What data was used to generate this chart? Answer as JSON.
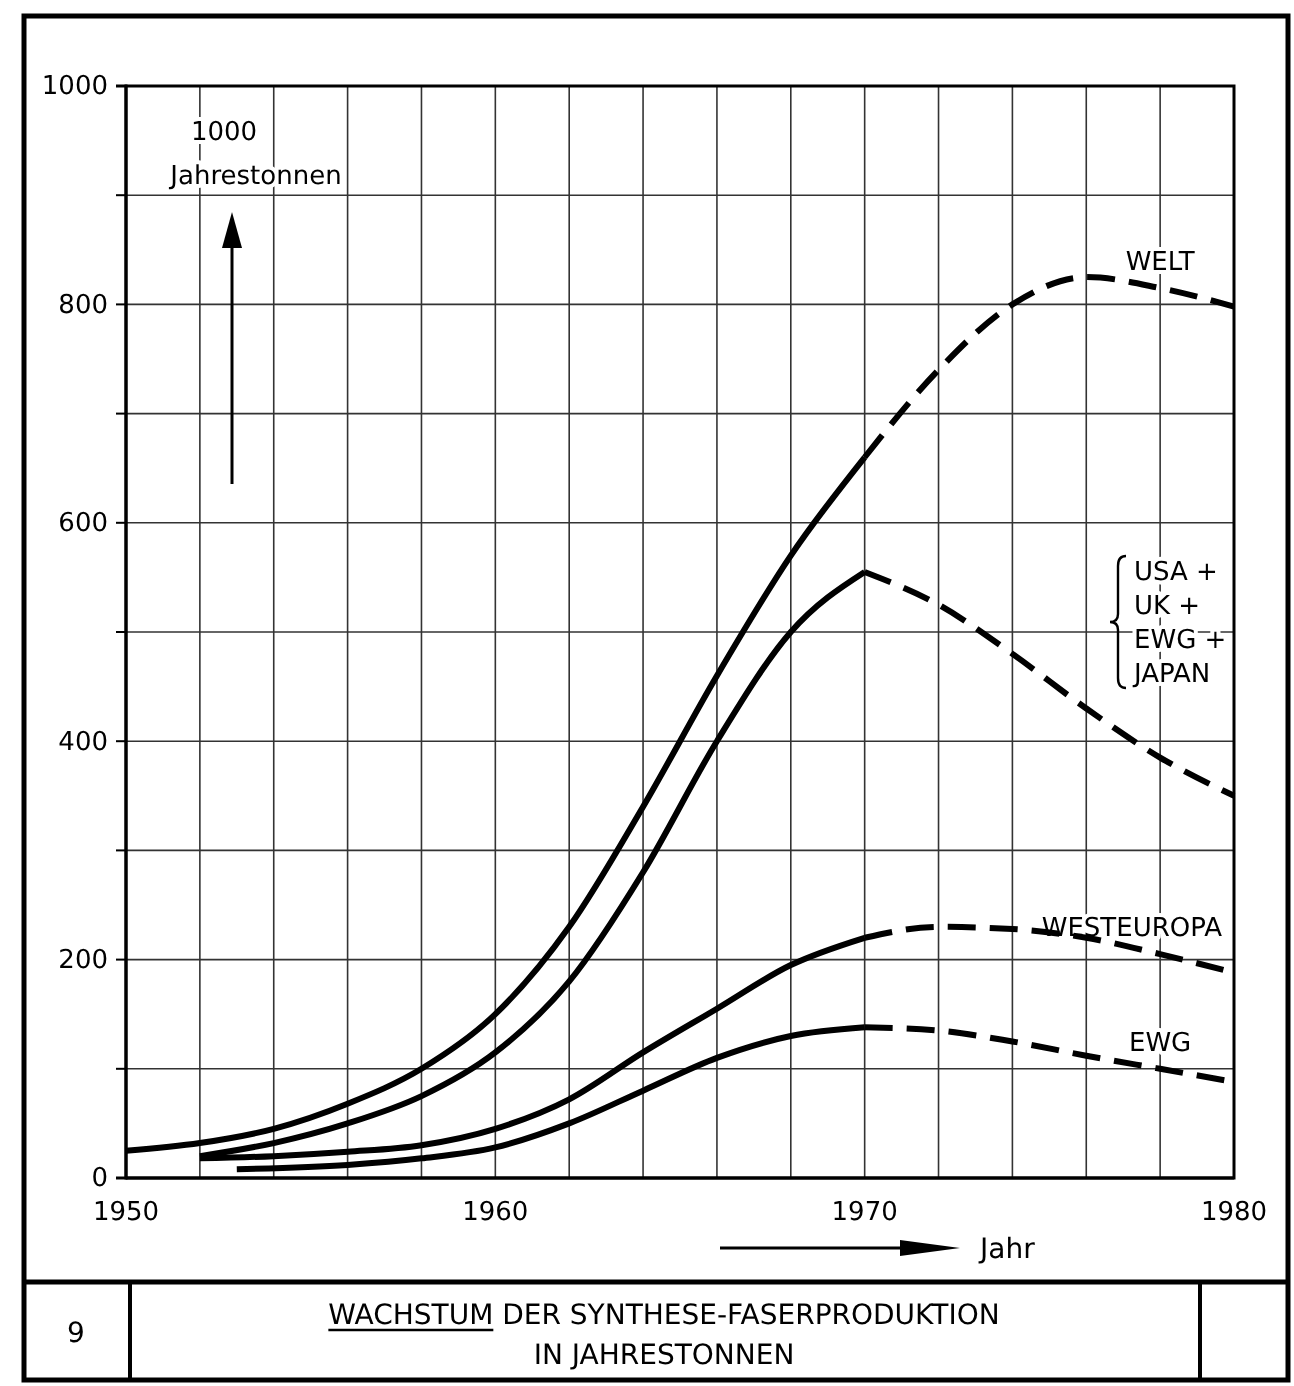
{
  "chart_data": {
    "type": "line",
    "title": "WACHSTUM DER SYNTHESE-FASERPRODUKTION\nIN JAHRESTONNEN",
    "xlabel": "Jahr",
    "ylabel": "1000 Jahrestonnen",
    "annotations": [
      "9"
    ],
    "xlim": [
      1950,
      1980
    ],
    "xticks": [
      1950,
      {
        "value": 1952,
        "label": null
      },
      {
        "value": 1954,
        "label": null
      },
      {
        "value": 1956,
        "label": null
      },
      {
        "value": 1958,
        "label": null
      },
      1960,
      {
        "value": 1962,
        "label": null
      },
      {
        "value": 1964,
        "label": null
      },
      {
        "value": 1966,
        "label": null
      },
      {
        "value": 1968,
        "label": null
      },
      1970,
      {
        "value": 1972,
        "label": null
      },
      {
        "value": 1974,
        "label": null
      },
      {
        "value": 1976,
        "label": null
      },
      {
        "value": 1978,
        "label": null
      },
      1980
    ],
    "ylim": [
      0,
      1000
    ],
    "yticks": [
      0,
      {
        "value": 100,
        "label": null
      },
      200,
      {
        "value": 300,
        "label": null
      },
      400,
      {
        "value": 500,
        "label": null
      },
      600,
      {
        "value": 700,
        "label": null
      },
      800,
      {
        "value": 900,
        "label": null
      },
      1000
    ],
    "grid": true,
    "legend": false,
    "marker": "none",
    "series": [
      {
        "color": "#000000",
        "line_style": "solid",
        "x": [
          1950,
          1952,
          1954,
          1956,
          1958,
          1960,
          1962,
          1964,
          1966,
          1968,
          1970
        ],
        "values": [
          25,
          32,
          45,
          68,
          100,
          150,
          230,
          340,
          460,
          570,
          660
        ]
      },
      {
        "name": "WELT",
        "color": "#000000",
        "line_style": "dashed",
        "x": [
          1970,
          1972,
          1974,
          1976,
          1978,
          1980
        ],
        "values": [
          660,
          740,
          800,
          825,
          815,
          798
        ]
      },
      {
        "color": "#000000",
        "line_style": "solid",
        "x": [
          1952,
          1954,
          1956,
          1958,
          1960,
          1962,
          1964,
          1966,
          1968,
          1970
        ],
        "values": [
          20,
          32,
          50,
          75,
          115,
          180,
          280,
          400,
          500,
          555
        ]
      },
      {
        "name": "USA + UK + EWG + JAPAN",
        "color": "#000000",
        "line_style": "dashed",
        "x": [
          1970,
          1972,
          1974,
          1976,
          1978,
          1980
        ],
        "values": [
          555,
          525,
          480,
          430,
          385,
          350
        ]
      },
      {
        "color": "#000000",
        "line_style": "solid",
        "x": [
          1952,
          1954,
          1956,
          1958,
          1960,
          1962,
          1964,
          1966,
          1968,
          1970
        ],
        "values": [
          18,
          20,
          24,
          30,
          45,
          72,
          115,
          155,
          195,
          220
        ]
      },
      {
        "name": "WESTEUROPA",
        "color": "#000000",
        "line_style": "dashed",
        "x": [
          1970,
          1972,
          1974,
          1976,
          1978,
          1980
        ],
        "values": [
          220,
          230,
          228,
          220,
          205,
          188
        ]
      },
      {
        "color": "#000000",
        "line_style": "solid",
        "x": [
          1953,
          1956,
          1958,
          1960,
          1962,
          1964,
          1966,
          1968,
          1970
        ],
        "values": [
          8,
          12,
          18,
          28,
          50,
          80,
          110,
          130,
          138
        ]
      },
      {
        "name": "EWG",
        "color": "#000000",
        "line_style": "dashed",
        "x": [
          1970,
          1972,
          1974,
          1976,
          1978,
          1980
        ],
        "values": [
          138,
          135,
          125,
          112,
          100,
          88
        ]
      }
    ]
  }
}
